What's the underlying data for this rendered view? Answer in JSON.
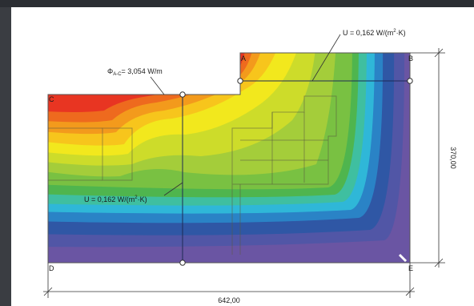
{
  "figure": {
    "annotations": {
      "flux": "Φ",
      "flux_sub": "A-C",
      "flux_value": "= 3,054 W/m",
      "u_top": "U = 0,162 W/(m",
      "u_top_sup": "2",
      "u_top_tail": "·K)",
      "u_left": "U = 0,162 W/(m",
      "u_left_sup": "2",
      "u_left_tail": "·K)"
    },
    "corners": {
      "a": "A",
      "b": "B",
      "c": "C",
      "d": "D",
      "e": "E"
    },
    "dimensions": {
      "width": "642,00",
      "height": "370,00"
    }
  },
  "colors": {
    "hot": "#e83522",
    "orange": "#f39a1c",
    "yellow": "#f2e81d",
    "green": "#79c142",
    "cyan": "#2fb7d8",
    "blue": "#2f57a5",
    "cold": "#6a55a3"
  }
}
